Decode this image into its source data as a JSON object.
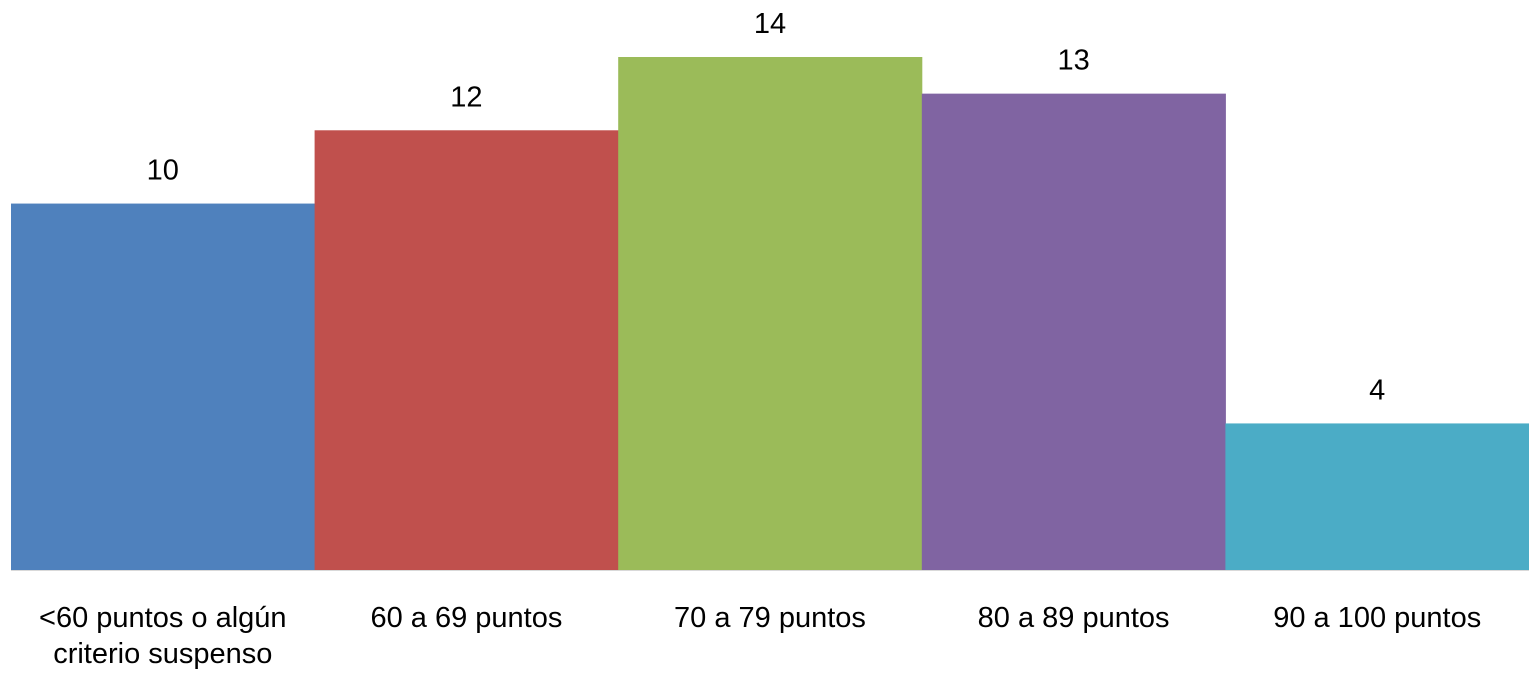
{
  "chart_data": {
    "type": "bar",
    "categories": [
      [
        "<60 puntos o algún",
        "criterio suspenso"
      ],
      [
        "60 a 69 puntos"
      ],
      [
        "70 a 79 puntos"
      ],
      [
        "80 a 89 puntos"
      ],
      [
        "90 a 100 puntos"
      ]
    ],
    "values": [
      10,
      12,
      14,
      13,
      4
    ],
    "data_labels": [
      "10",
      "12",
      "14",
      "13",
      "4"
    ],
    "colors": [
      "#4F81BD",
      "#C0504D",
      "#9BBB59",
      "#8064A2",
      "#4BACC6"
    ],
    "title": "",
    "xlabel": "",
    "ylabel": "",
    "ylim": [
      0,
      14
    ],
    "grid": false,
    "legend": "none"
  }
}
